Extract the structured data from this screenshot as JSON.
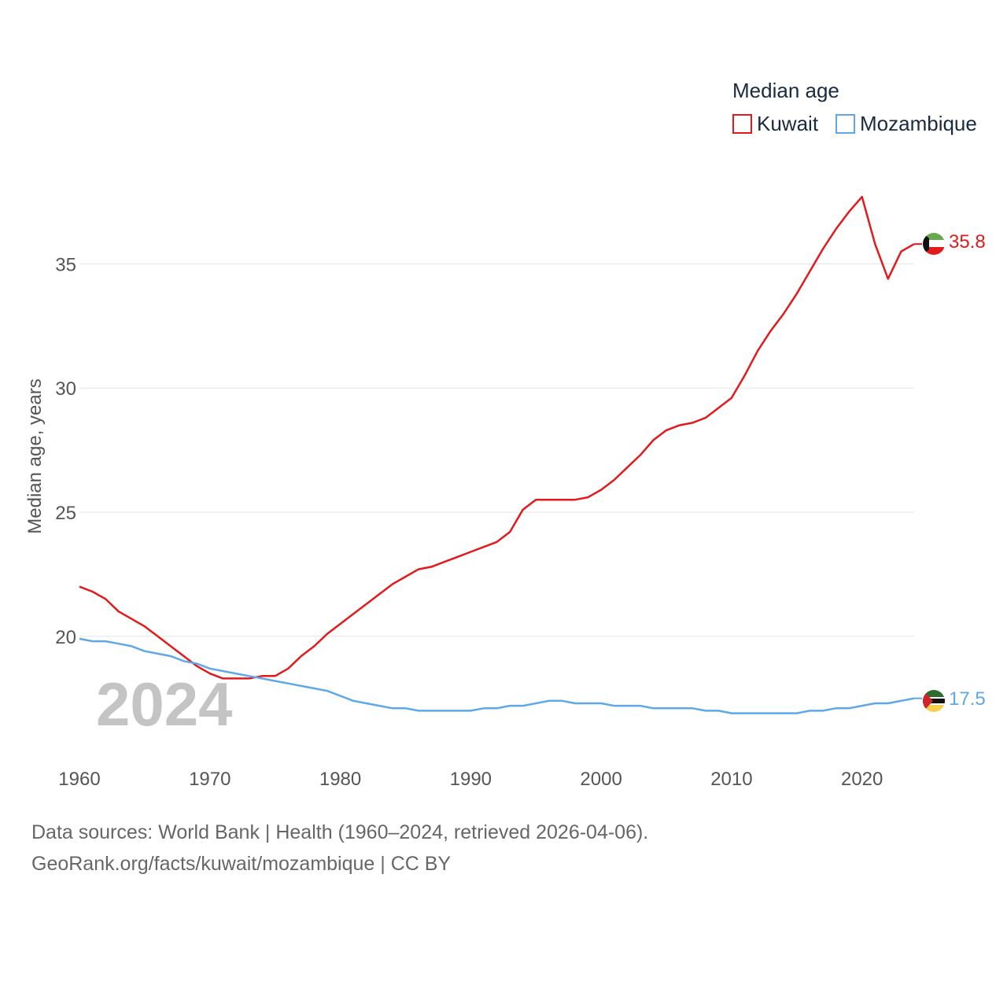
{
  "chart_data": {
    "type": "line",
    "legend_title": "Median age",
    "ylabel": "Median age, years",
    "xlabel": "",
    "xlim": [
      1960,
      2024
    ],
    "ylim": [
      16,
      38.5
    ],
    "x_ticks": [
      1960,
      1970,
      1980,
      1990,
      2000,
      2010,
      2020
    ],
    "y_ticks": [
      20,
      25,
      30,
      35
    ],
    "watermark_year": "2024",
    "x": [
      1960,
      1961,
      1962,
      1963,
      1964,
      1965,
      1966,
      1967,
      1968,
      1969,
      1970,
      1971,
      1972,
      1973,
      1974,
      1975,
      1976,
      1977,
      1978,
      1979,
      1980,
      1981,
      1982,
      1983,
      1984,
      1985,
      1986,
      1987,
      1988,
      1989,
      1990,
      1991,
      1992,
      1993,
      1994,
      1995,
      1996,
      1997,
      1998,
      1999,
      2000,
      2001,
      2002,
      2003,
      2004,
      2005,
      2006,
      2007,
      2008,
      2009,
      2010,
      2011,
      2012,
      2013,
      2014,
      2015,
      2016,
      2017,
      2018,
      2019,
      2020,
      2021,
      2022,
      2023,
      2024
    ],
    "series": [
      {
        "name": "Kuwait",
        "color": "#e31a1c",
        "end_label": "35.8",
        "values": [
          22.0,
          21.8,
          21.5,
          21.0,
          20.7,
          20.4,
          20.0,
          19.6,
          19.2,
          18.8,
          18.5,
          18.3,
          18.3,
          18.3,
          18.4,
          18.4,
          18.7,
          19.2,
          19.6,
          20.1,
          20.5,
          20.9,
          21.3,
          21.7,
          22.1,
          22.4,
          22.7,
          22.8,
          23.0,
          23.2,
          23.4,
          23.6,
          23.8,
          24.2,
          25.1,
          25.5,
          25.5,
          25.5,
          25.5,
          25.6,
          25.9,
          26.3,
          26.8,
          27.3,
          27.9,
          28.3,
          28.5,
          28.6,
          28.8,
          29.2,
          29.6,
          30.5,
          31.5,
          32.3,
          33.0,
          33.8,
          34.7,
          35.6,
          36.4,
          37.1,
          37.7,
          35.8,
          34.4,
          35.5,
          35.8
        ]
      },
      {
        "name": "Mozambique",
        "color": "#5fa8e8",
        "end_label": "17.5",
        "values": [
          19.9,
          19.8,
          19.8,
          19.7,
          19.6,
          19.4,
          19.3,
          19.2,
          19.0,
          18.9,
          18.7,
          18.6,
          18.5,
          18.4,
          18.3,
          18.2,
          18.1,
          18.0,
          17.9,
          17.8,
          17.6,
          17.4,
          17.3,
          17.2,
          17.1,
          17.1,
          17.0,
          17.0,
          17.0,
          17.0,
          17.0,
          17.1,
          17.1,
          17.2,
          17.2,
          17.3,
          17.4,
          17.4,
          17.3,
          17.3,
          17.3,
          17.2,
          17.2,
          17.2,
          17.1,
          17.1,
          17.1,
          17.1,
          17.0,
          17.0,
          16.9,
          16.9,
          16.9,
          16.9,
          16.9,
          16.9,
          17.0,
          17.0,
          17.1,
          17.1,
          17.2,
          17.3,
          17.3,
          17.4,
          17.5
        ]
      }
    ]
  },
  "footer": {
    "line1": "Data sources: World Bank | Health (1960–2024, retrieved 2026-04-06).",
    "line2": "GeoRank.org/facts/kuwait/mozambique | CC BY"
  },
  "flags": {
    "kuwait": {
      "green": "#6aa84f",
      "white": "#ffffff",
      "red": "#e31a1c",
      "black": "#111111"
    },
    "mozambique": {
      "green": "#2e6b2e",
      "black": "#111111",
      "yellow": "#f6d04d",
      "red": "#d2232a",
      "white": "#ffffff"
    }
  }
}
